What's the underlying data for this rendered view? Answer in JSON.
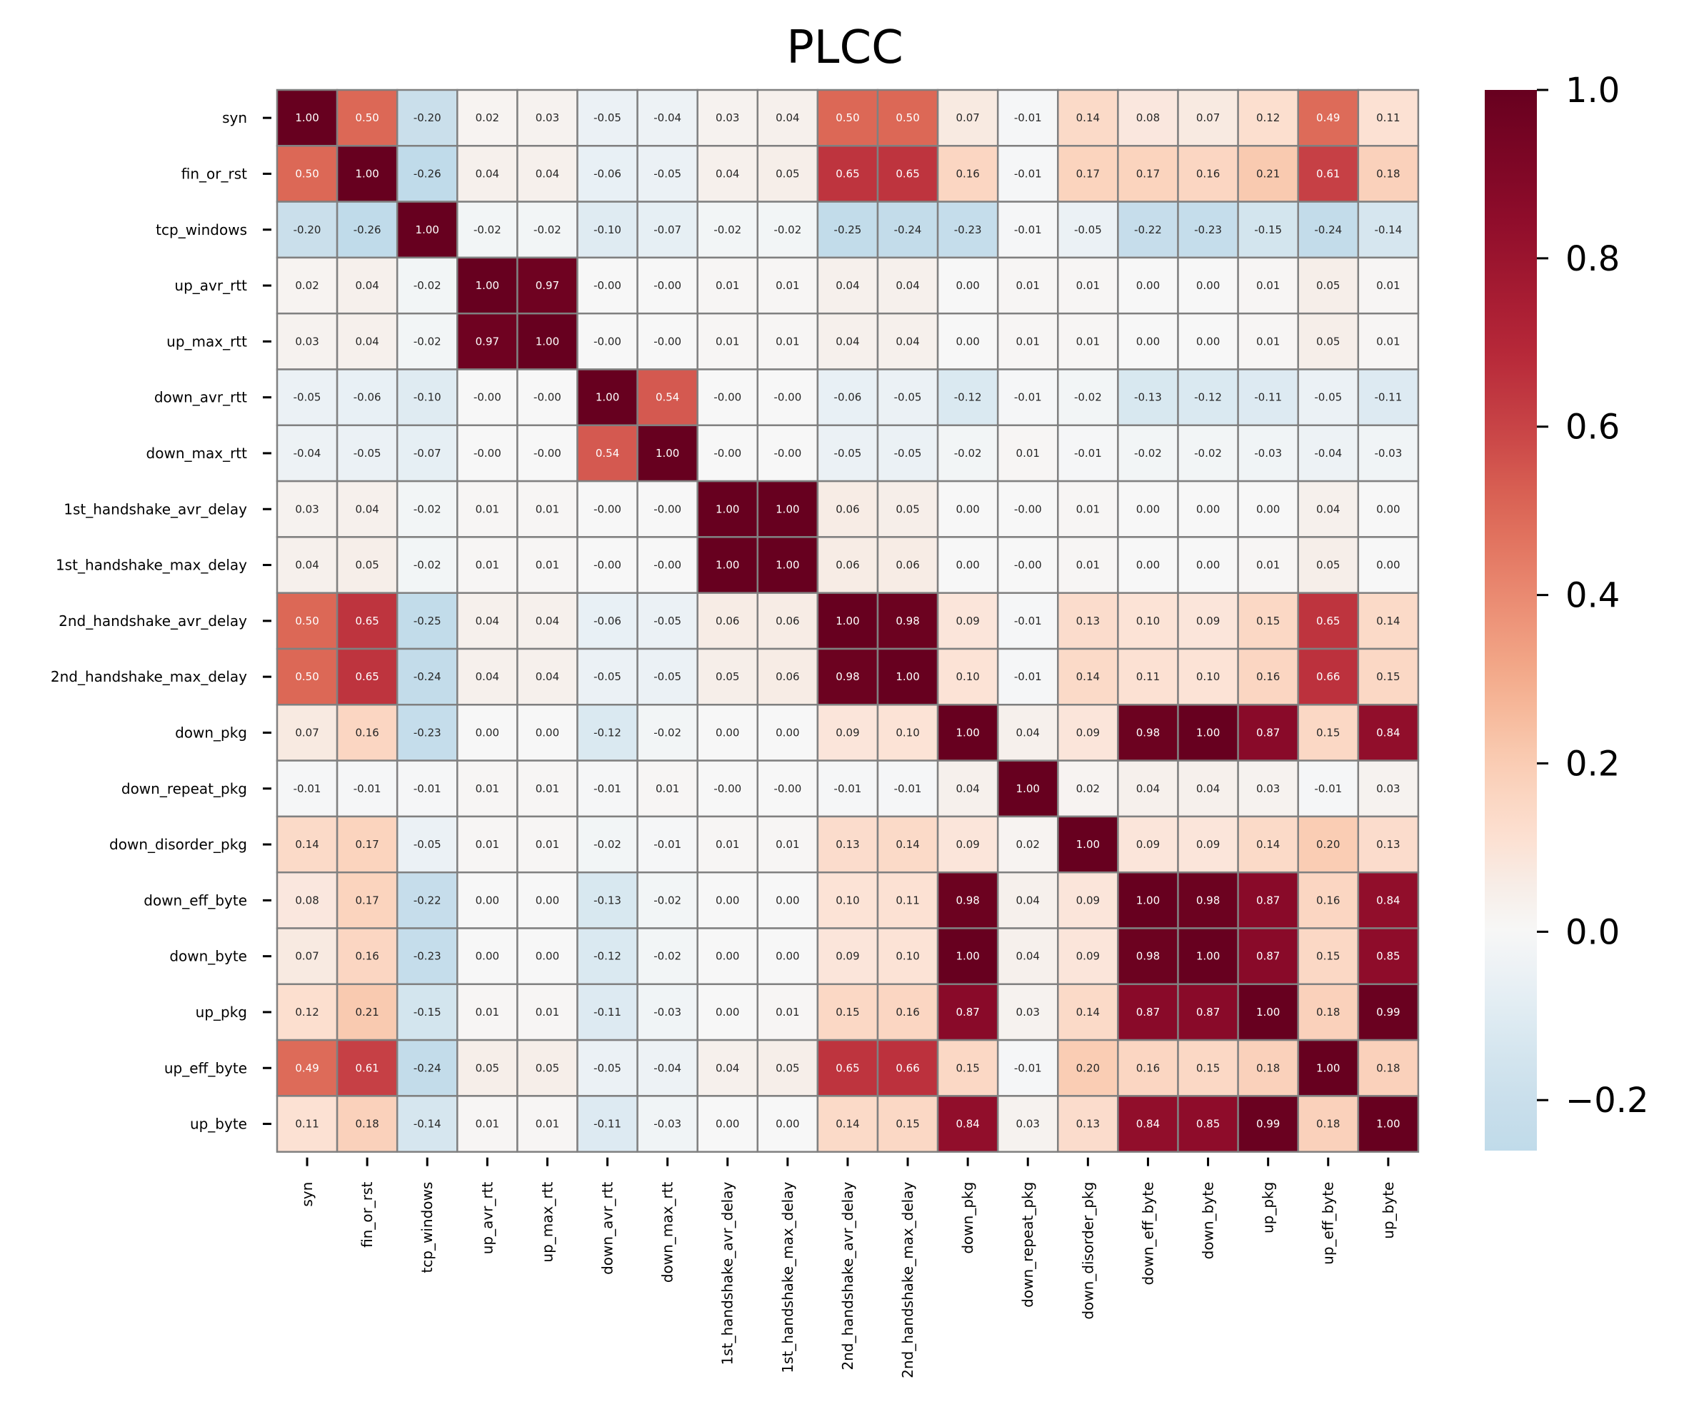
{
  "chart_data": {
    "type": "heatmap",
    "title": "PLCC",
    "labels": [
      "syn",
      "fin_or_rst",
      "tcp_windows",
      "up_avr_rtt",
      "up_max_rtt",
      "down_avr_rtt",
      "down_max_rtt",
      "1st_handshake_avr_delay",
      "1st_handshake_max_delay",
      "2nd_handshake_avr_delay",
      "2nd_handshake_max_delay",
      "down_pkg",
      "down_repeat_pkg",
      "down_disorder_pkg",
      "down_eff_byte",
      "down_byte",
      "up_pkg",
      "up_eff_byte",
      "up_byte"
    ],
    "values": [
      [
        1.0,
        0.5,
        -0.2,
        0.02,
        0.03,
        -0.05,
        -0.04,
        0.03,
        0.04,
        0.5,
        0.5,
        0.07,
        -0.01,
        0.14,
        0.08,
        0.07,
        0.12,
        0.49,
        0.11
      ],
      [
        0.5,
        1.0,
        -0.26,
        0.04,
        0.04,
        -0.06,
        -0.05,
        0.04,
        0.05,
        0.65,
        0.65,
        0.16,
        -0.01,
        0.17,
        0.17,
        0.16,
        0.21,
        0.61,
        0.18
      ],
      [
        -0.2,
        -0.26,
        1.0,
        -0.02,
        -0.02,
        -0.1,
        -0.07,
        -0.02,
        -0.02,
        -0.25,
        -0.24,
        -0.23,
        -0.01,
        -0.05,
        -0.22,
        -0.23,
        -0.15,
        -0.24,
        -0.14
      ],
      [
        0.02,
        0.04,
        -0.02,
        1.0,
        0.97,
        -0.0,
        -0.0,
        0.01,
        0.01,
        0.04,
        0.04,
        0.0,
        0.01,
        0.01,
        0.0,
        0.0,
        0.01,
        0.05,
        0.01
      ],
      [
        0.03,
        0.04,
        -0.02,
        0.97,
        1.0,
        -0.0,
        -0.0,
        0.01,
        0.01,
        0.04,
        0.04,
        0.0,
        0.01,
        0.01,
        0.0,
        0.0,
        0.01,
        0.05,
        0.01
      ],
      [
        -0.05,
        -0.06,
        -0.1,
        -0.0,
        -0.0,
        1.0,
        0.54,
        -0.0,
        -0.0,
        -0.06,
        -0.05,
        -0.12,
        -0.01,
        -0.02,
        -0.13,
        -0.12,
        -0.11,
        -0.05,
        -0.11
      ],
      [
        -0.04,
        -0.05,
        -0.07,
        -0.0,
        -0.0,
        0.54,
        1.0,
        -0.0,
        -0.0,
        -0.05,
        -0.05,
        -0.02,
        0.01,
        -0.01,
        -0.02,
        -0.02,
        -0.03,
        -0.04,
        -0.03
      ],
      [
        0.03,
        0.04,
        -0.02,
        0.01,
        0.01,
        -0.0,
        -0.0,
        1.0,
        1.0,
        0.06,
        0.05,
        0.0,
        -0.0,
        0.01,
        0.0,
        0.0,
        0.0,
        0.04,
        0.0
      ],
      [
        0.04,
        0.05,
        -0.02,
        0.01,
        0.01,
        -0.0,
        -0.0,
        1.0,
        1.0,
        0.06,
        0.06,
        0.0,
        -0.0,
        0.01,
        0.0,
        0.0,
        0.01,
        0.05,
        0.0
      ],
      [
        0.5,
        0.65,
        -0.25,
        0.04,
        0.04,
        -0.06,
        -0.05,
        0.06,
        0.06,
        1.0,
        0.98,
        0.09,
        -0.01,
        0.13,
        0.1,
        0.09,
        0.15,
        0.65,
        0.14
      ],
      [
        0.5,
        0.65,
        -0.24,
        0.04,
        0.04,
        -0.05,
        -0.05,
        0.05,
        0.06,
        0.98,
        1.0,
        0.1,
        -0.01,
        0.14,
        0.11,
        0.1,
        0.16,
        0.66,
        0.15
      ],
      [
        0.07,
        0.16,
        -0.23,
        0.0,
        0.0,
        -0.12,
        -0.02,
        0.0,
        0.0,
        0.09,
        0.1,
        1.0,
        0.04,
        0.09,
        0.98,
        1.0,
        0.87,
        0.15,
        0.84
      ],
      [
        -0.01,
        -0.01,
        -0.01,
        0.01,
        0.01,
        -0.01,
        0.01,
        -0.0,
        -0.0,
        -0.01,
        -0.01,
        0.04,
        1.0,
        0.02,
        0.04,
        0.04,
        0.03,
        -0.01,
        0.03
      ],
      [
        0.14,
        0.17,
        -0.05,
        0.01,
        0.01,
        -0.02,
        -0.01,
        0.01,
        0.01,
        0.13,
        0.14,
        0.09,
        0.02,
        1.0,
        0.09,
        0.09,
        0.14,
        0.2,
        0.13
      ],
      [
        0.08,
        0.17,
        -0.22,
        0.0,
        0.0,
        -0.13,
        -0.02,
        0.0,
        0.0,
        0.1,
        0.11,
        0.98,
        0.04,
        0.09,
        1.0,
        0.98,
        0.87,
        0.16,
        0.84
      ],
      [
        0.07,
        0.16,
        -0.23,
        0.0,
        0.0,
        -0.12,
        -0.02,
        0.0,
        0.0,
        0.09,
        0.1,
        1.0,
        0.04,
        0.09,
        0.98,
        1.0,
        0.87,
        0.15,
        0.85
      ],
      [
        0.12,
        0.21,
        -0.15,
        0.01,
        0.01,
        -0.11,
        -0.03,
        0.0,
        0.01,
        0.15,
        0.16,
        0.87,
        0.03,
        0.14,
        0.87,
        0.87,
        1.0,
        0.18,
        0.99
      ],
      [
        0.49,
        0.61,
        -0.24,
        0.05,
        0.05,
        -0.05,
        -0.04,
        0.04,
        0.05,
        0.65,
        0.66,
        0.15,
        -0.01,
        0.2,
        0.16,
        0.15,
        0.18,
        1.0,
        0.18
      ],
      [
        0.11,
        0.18,
        -0.14,
        0.01,
        0.01,
        -0.11,
        -0.03,
        0.0,
        0.0,
        0.14,
        0.15,
        0.84,
        0.03,
        0.13,
        0.84,
        0.85,
        0.99,
        0.18,
        1.0
      ]
    ],
    "value_format": "2 decimals",
    "colormap": "RdBu_r",
    "vmin": -0.26,
    "vmax": 1.0,
    "center": 0,
    "colorbar": {
      "ticks": [
        -0.2,
        0.0,
        0.2,
        0.4,
        0.6,
        0.8,
        1.0
      ],
      "tick_labels": [
        "−0.2",
        "0.0",
        "0.2",
        "0.4",
        "0.6",
        "0.8",
        "1.0"
      ],
      "placement": "right"
    },
    "gridlines": "gray cell borders",
    "colors": {
      "max": "#67001f",
      "center": "#f7f7f7",
      "min": "#c0dbea",
      "cell_border": "#808080"
    }
  }
}
